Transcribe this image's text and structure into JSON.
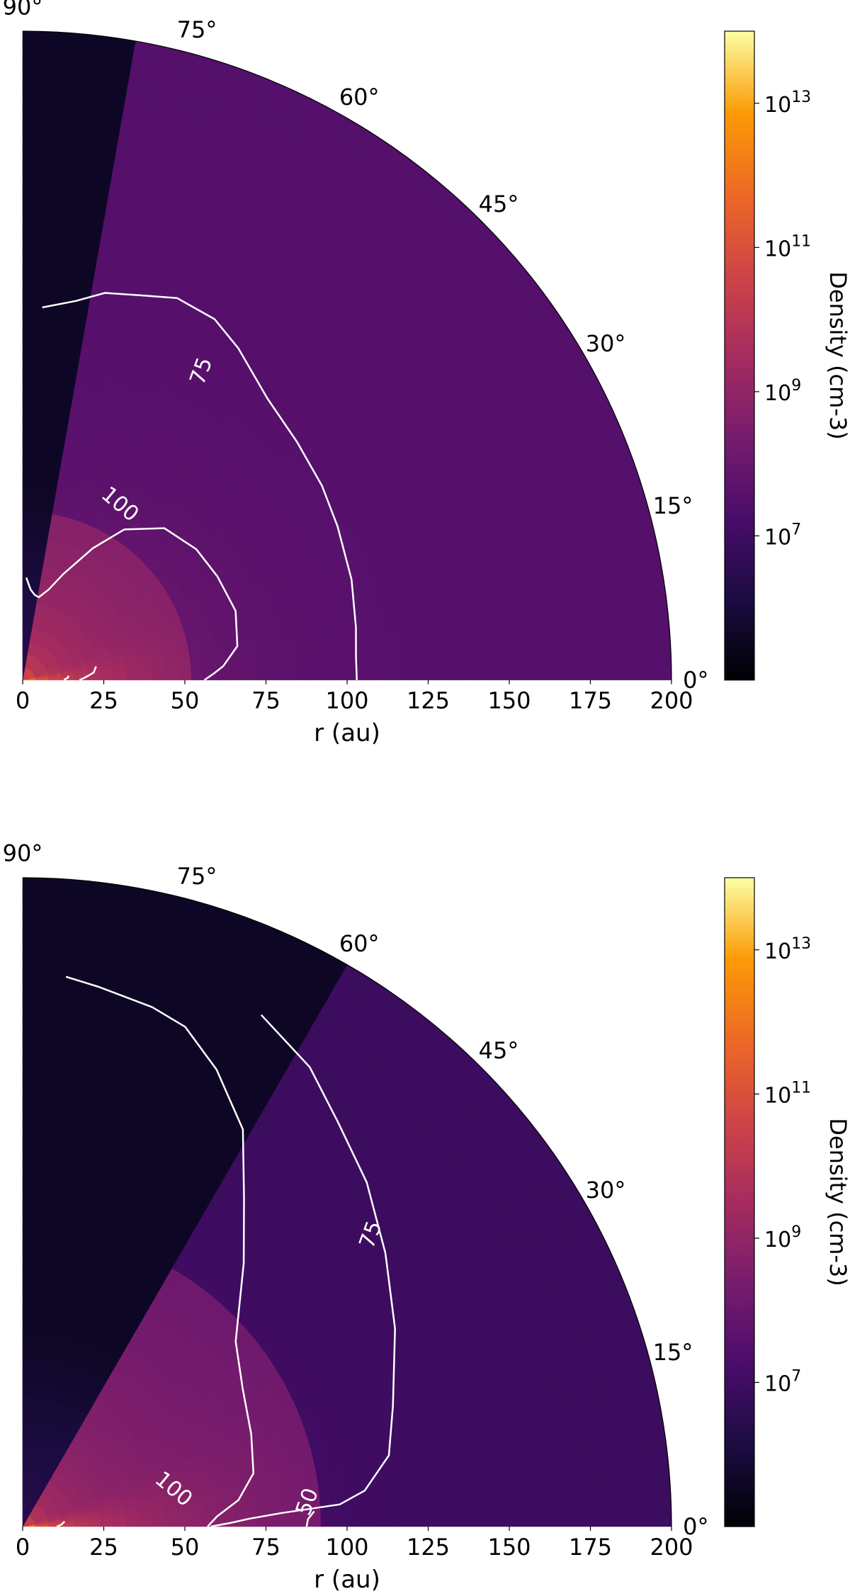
{
  "chart_data": [
    {
      "type": "heatmap",
      "projection": "polar-quadrant",
      "xlabel": "r (au)",
      "xlim": [
        0,
        200
      ],
      "x_ticks": [
        "0",
        "25",
        "50",
        "75",
        "100",
        "125",
        "150",
        "175",
        "200"
      ],
      "angle_ticks": [
        "0°",
        "15°",
        "30°",
        "45°",
        "60°",
        "75°",
        "90°"
      ],
      "colorbar": {
        "label": "Density (cm-3)",
        "scale": "log",
        "range": [
          5,
          14
        ],
        "tick_labels": [
          {
            "base": "10",
            "exp": "7",
            "value": 7
          },
          {
            "base": "10",
            "exp": "9",
            "value": 9
          },
          {
            "base": "10",
            "exp": "11",
            "value": 11
          },
          {
            "base": "10",
            "exp": "13",
            "value": 13
          }
        ]
      },
      "density_field": {
        "polar_cavity_edge_deg": 80,
        "cavity_log_density": 5.6,
        "inner_disk_radius_au": 53,
        "outer_log_density": 7.5,
        "inner_peak_log_density": 12.8
      },
      "contours": [
        {
          "level": "100",
          "label_position": {
            "r": 62,
            "theta": 61
          }
        },
        {
          "level": "75",
          "label_position": {
            "r": 110,
            "theta": 60
          }
        },
        {
          "level": "",
          "label_position": null
        },
        {
          "level": "",
          "label_position": null
        }
      ]
    },
    {
      "type": "heatmap",
      "projection": "polar-quadrant",
      "xlabel": "r (au)",
      "xlim": [
        0,
        200
      ],
      "x_ticks": [
        "0",
        "25",
        "50",
        "75",
        "100",
        "125",
        "150",
        "175",
        "200"
      ],
      "angle_ticks": [
        "0°",
        "15°",
        "30°",
        "45°",
        "60°",
        "75°",
        "90°"
      ],
      "colorbar": {
        "label": "Density (cm-3)",
        "scale": "log",
        "range": [
          5,
          14
        ],
        "tick_labels": [
          {
            "base": "10",
            "exp": "7",
            "value": 7
          },
          {
            "base": "10",
            "exp": "9",
            "value": 9
          },
          {
            "base": "10",
            "exp": "11",
            "value": 11
          },
          {
            "base": "10",
            "exp": "13",
            "value": 13
          }
        ]
      },
      "density_field": {
        "polar_cavity_edge_deg": 60,
        "cavity_log_density": 5.6,
        "inner_disk_radius_au": 92,
        "outer_log_density": 6.9,
        "inner_peak_log_density": 12.8
      },
      "contours": [
        {
          "level": "100",
          "label_position": {
            "r": 48,
            "theta": 14
          }
        },
        {
          "level": "75",
          "label_position": {
            "r": 140,
            "theta": 40
          }
        },
        {
          "level": "50",
          "label_position": {
            "r": 88,
            "theta": 5
          }
        },
        {
          "level": "",
          "label_position": null
        }
      ]
    }
  ]
}
